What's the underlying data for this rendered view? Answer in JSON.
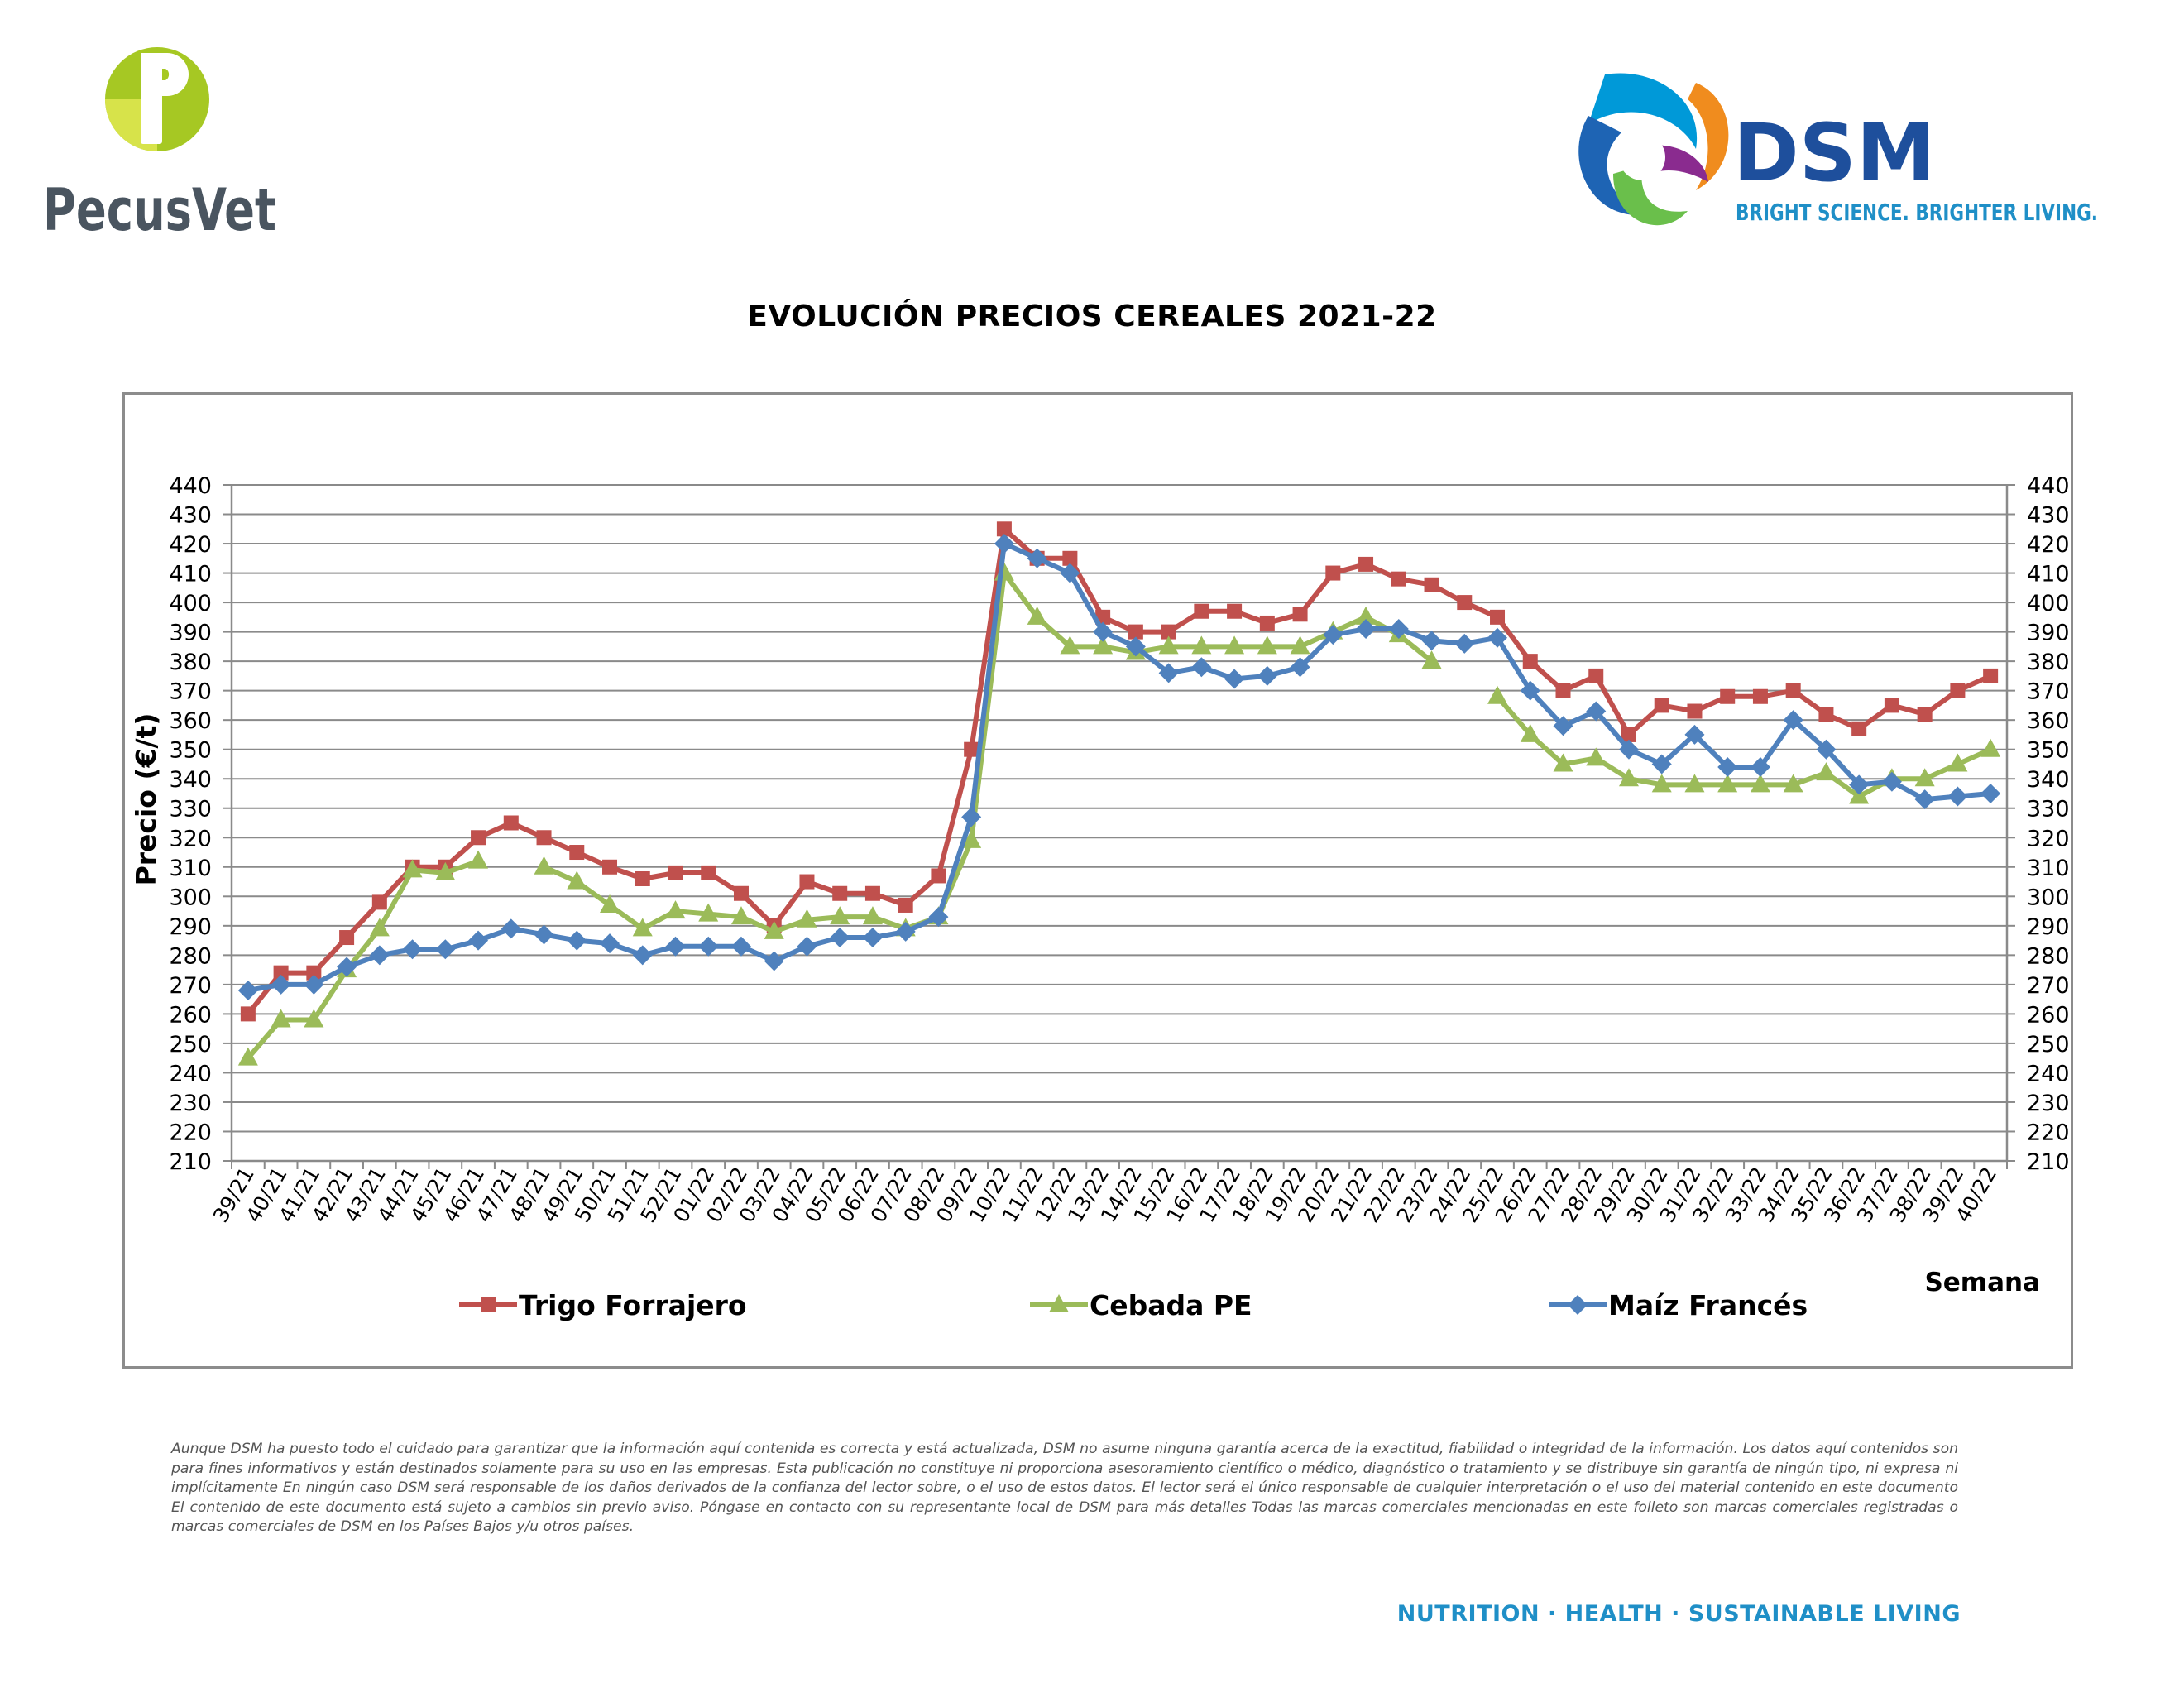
{
  "logos": {
    "pecusvet": {
      "brand_text": "PecusVet",
      "colors": [
        "#a6c823",
        "#cfdd2f",
        "#4a5560"
      ]
    },
    "dsm": {
      "brand_text": "DSM",
      "tagline": "BRIGHT SCIENCE. BRIGHTER LIVING.",
      "colors": [
        "#1e64b4",
        "#0099d8",
        "#f08c1e",
        "#8a2b8f",
        "#6abf4b"
      ]
    }
  },
  "chart_data": {
    "type": "line",
    "title": "EVOLUCIÓN PRECIOS CEREALES 2021-22",
    "ylabel": "Precio (€/t)",
    "xlabel": "Semana",
    "ylim": [
      210,
      440
    ],
    "ytick_step": 10,
    "secondary_y_axis": true,
    "grid": true,
    "legend_position": "bottom",
    "categories": [
      "39/21",
      "40/21",
      "41/21",
      "42/21",
      "43/21",
      "44/21",
      "45/21",
      "46/21",
      "47/21",
      "48/21",
      "49/21",
      "50/21",
      "51/21",
      "52/21",
      "01/22",
      "02/22",
      "03/22",
      "04/22",
      "05/22",
      "06/22",
      "07/22",
      "08/22",
      "09/22",
      "10/22",
      "11/22",
      "12/22",
      "13/22",
      "14/22",
      "15/22",
      "16/22",
      "17/22",
      "18/22",
      "19/22",
      "20/22",
      "21/22",
      "22/22",
      "23/22",
      "24/22",
      "25/22",
      "26/22",
      "27/22",
      "28/22",
      "29/22",
      "30/22",
      "31/22",
      "32/22",
      "33/22",
      "34/22",
      "35/22",
      "36/22",
      "37/22",
      "38/22",
      "39/22",
      "40/22"
    ],
    "series": [
      {
        "name": "Trigo Forrajero",
        "color": "#c0504d",
        "marker": "square",
        "values": [
          260,
          274,
          274,
          286,
          298,
          310,
          310,
          320,
          325,
          320,
          315,
          310,
          306,
          308,
          308,
          301,
          290,
          305,
          301,
          301,
          297,
          307,
          350,
          425,
          415,
          415,
          395,
          390,
          390,
          397,
          397,
          393,
          396,
          410,
          413,
          408,
          406,
          400,
          395,
          380,
          370,
          375,
          355,
          365,
          363,
          368,
          368,
          370,
          362,
          357,
          365,
          362,
          370,
          375
        ]
      },
      {
        "name": "Cebada PE",
        "color": "#9bbb59",
        "marker": "triangle",
        "values": [
          245,
          258,
          258,
          275,
          289,
          309,
          308,
          312,
          null,
          310,
          305,
          297,
          289,
          295,
          294,
          293,
          288,
          292,
          293,
          293,
          289,
          293,
          319,
          410,
          395,
          385,
          385,
          383,
          385,
          385,
          385,
          385,
          385,
          390,
          395,
          389,
          380,
          null,
          368,
          355,
          345,
          347,
          340,
          338,
          338,
          338,
          338,
          338,
          342,
          334,
          340,
          340,
          345,
          350
        ]
      },
      {
        "name": "Maíz Francés",
        "color": "#4f81bd",
        "marker": "diamond",
        "values": [
          268,
          270,
          270,
          276,
          280,
          282,
          282,
          285,
          289,
          287,
          285,
          284,
          280,
          283,
          283,
          283,
          278,
          283,
          286,
          286,
          288,
          293,
          327,
          420,
          415,
          410,
          390,
          385,
          376,
          378,
          374,
          375,
          378,
          389,
          391,
          391,
          387,
          386,
          388,
          370,
          358,
          363,
          350,
          345,
          355,
          344,
          344,
          360,
          350,
          338,
          339,
          333,
          334,
          335
        ]
      }
    ]
  },
  "disclaimer": "Aunque DSM ha puesto todo el cuidado para garantizar que la información aquí contenida es correcta y está actualizada, DSM no asume ninguna garantía acerca de la exactitud, fiabilidad o integridad de la información. Los datos aquí contenidos son para fines informativos y están destinados solamente para su uso en las empresas. Esta publicación no constituye ni proporciona asesoramiento científico o médico, diagnóstico o tratamiento y se distribuye sin garantía de ningún tipo, ni expresa ni implícitamente En ningún caso DSM será responsable de los daños derivados de la confianza del lector sobre, o el uso de estos datos. El lector será el único responsable de cualquier interpretación o el uso del material contenido en este documento El contenido de este documento está sujeto a cambios sin previo aviso. Póngase en contacto con su representante local de DSM para más detalles Todas las marcas comerciales mencionadas en este folleto son marcas comerciales registradas o marcas comerciales de DSM en los Países Bajos y/u otros países.",
  "footer_tagline": "NUTRITION · HEALTH · SUSTAINABLE LIVING"
}
